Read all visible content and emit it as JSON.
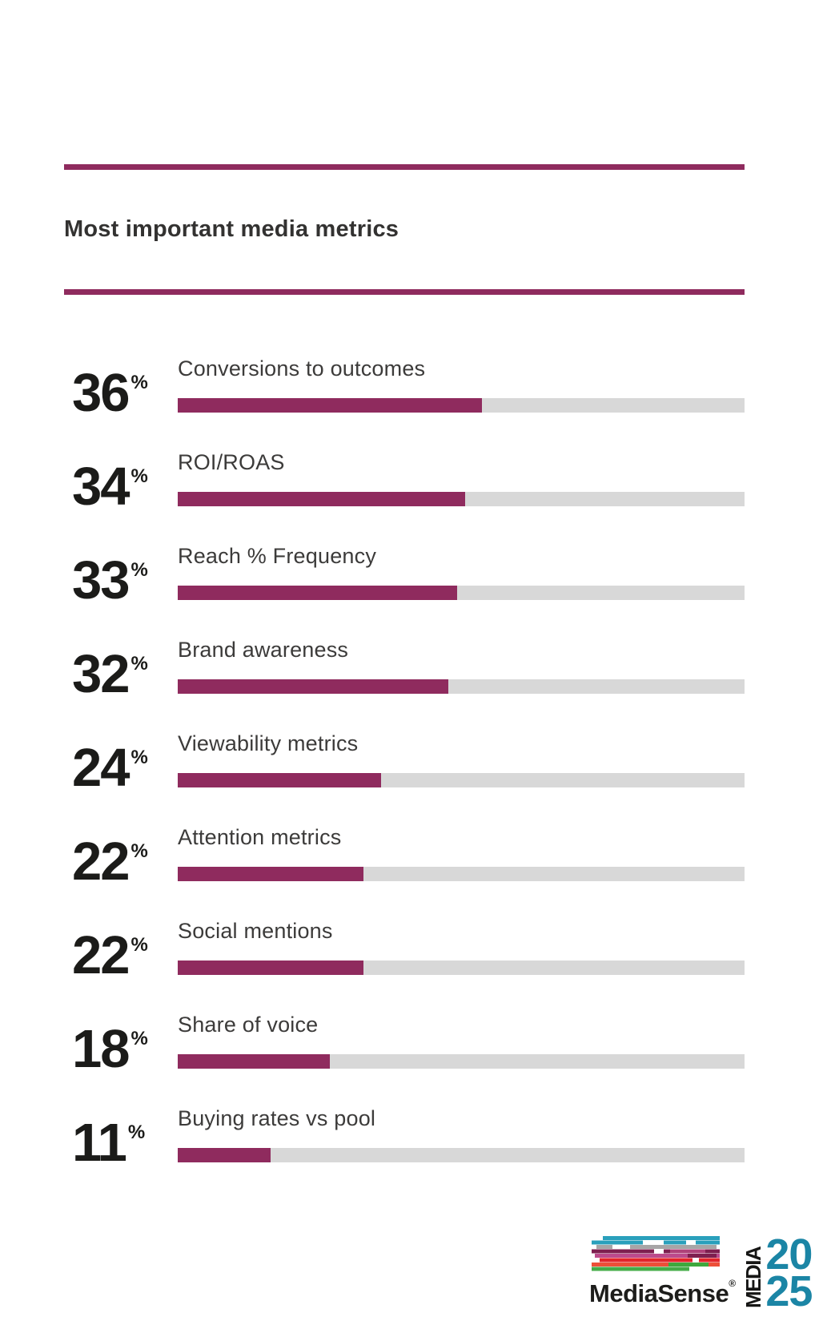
{
  "page": {
    "title": "Most important media metrics"
  },
  "colors": {
    "accent_maroon": "#8F2B5E",
    "track_gray": "#D8D8D8",
    "text_dark": "#1B1B19",
    "label_gray": "#3C3B3A",
    "logo_teal": "#1B85A5"
  },
  "chart_data": {
    "type": "bar",
    "orientation": "horizontal",
    "title": "Most important media metrics",
    "unit": "%",
    "value_range": [
      0,
      100
    ],
    "bar_scale_max": 67,
    "legend": "none",
    "grid": false,
    "categories": [
      "Conversions to outcomes",
      "ROI/ROAS",
      "Reach % Frequency",
      "Brand awareness",
      "Viewability metrics",
      "Attention metrics",
      "Social mentions",
      "Share of voice",
      "Buying rates vs pool"
    ],
    "values": [
      36,
      34,
      33,
      32,
      24,
      22,
      22,
      18,
      11
    ],
    "rows": [
      {
        "value": 36,
        "label": "Conversions to outcomes"
      },
      {
        "value": 34,
        "label": "ROI/ROAS"
      },
      {
        "value": 33,
        "label": "Reach % Frequency"
      },
      {
        "value": 32,
        "label": "Brand awareness"
      },
      {
        "value": 24,
        "label": "Viewability metrics"
      },
      {
        "value": 22,
        "label": "Attention metrics"
      },
      {
        "value": 22,
        "label": "Social mentions"
      },
      {
        "value": 18,
        "label": "Share of voice"
      },
      {
        "value": 11,
        "label": "Buying rates vs pool"
      }
    ]
  },
  "footer": {
    "mediasense_wordmark": "MediaSense",
    "registered_mark": "®",
    "media_vertical_label": "MEDIA",
    "year_top": "20",
    "year_bottom": "25"
  }
}
